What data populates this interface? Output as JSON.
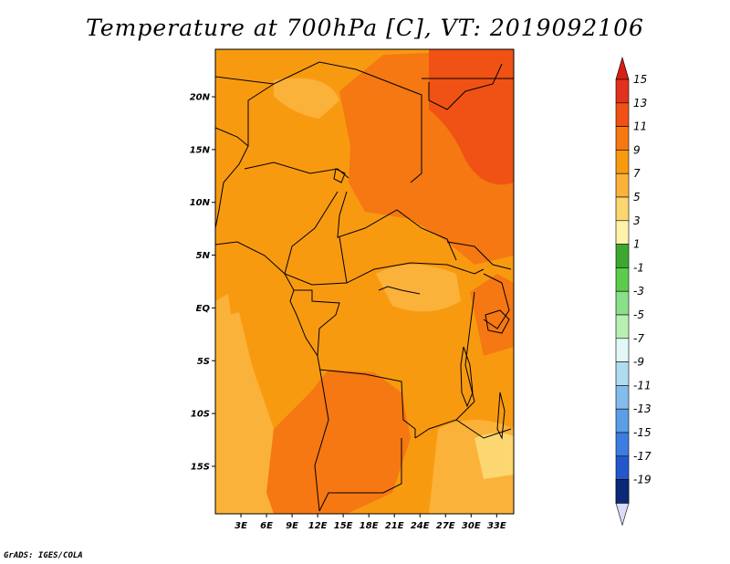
{
  "title": "Temperature at 700hPa [C], VT: 2019092106",
  "credit": "GrADS: IGES/COLA",
  "map": {
    "region": "Central Africa",
    "lat_range": [
      -19.5,
      24.5
    ],
    "lon_range": [
      0,
      35
    ],
    "lat_ticks": [
      {
        "label": "20N",
        "lat": 20
      },
      {
        "label": "15N",
        "lat": 15
      },
      {
        "label": "10N",
        "lat": 10
      },
      {
        "label": "5N",
        "lat": 5
      },
      {
        "label": "EQ",
        "lat": 0
      },
      {
        "label": "5S",
        "lat": -5
      },
      {
        "label": "10S",
        "lat": -10
      },
      {
        "label": "15S",
        "lat": -15
      }
    ],
    "lon_ticks": [
      {
        "label": "3E",
        "lon": 3
      },
      {
        "label": "6E",
        "lon": 6
      },
      {
        "label": "9E",
        "lon": 9
      },
      {
        "label": "12E",
        "lon": 12
      },
      {
        "label": "15E",
        "lon": 15
      },
      {
        "label": "18E",
        "lon": 18
      },
      {
        "label": "21E",
        "lon": 21
      },
      {
        "label": "24E",
        "lon": 24
      },
      {
        "label": "27E",
        "lon": 27
      },
      {
        "label": "30E",
        "lon": 30
      },
      {
        "label": "33E",
        "lon": 33
      }
    ]
  },
  "colorbar": {
    "levels": [
      {
        "label": "15",
        "color": "#e0321e"
      },
      {
        "label": "13",
        "color": "#ef5214"
      },
      {
        "label": "11",
        "color": "#f57812"
      },
      {
        "label": "9",
        "color": "#f89a10"
      },
      {
        "label": "7",
        "color": "#fbb23a"
      },
      {
        "label": "5",
        "color": "#fcd670"
      },
      {
        "label": "3",
        "color": "#fff2aa"
      },
      {
        "label": "1",
        "color": "#3ca832"
      },
      {
        "label": "-1",
        "color": "#5ccc4c"
      },
      {
        "label": "-3",
        "color": "#8ae088"
      },
      {
        "label": "-5",
        "color": "#b8f0b4"
      },
      {
        "label": "-7",
        "color": "#e2f8f8"
      },
      {
        "label": "-9",
        "color": "#b0dcf2"
      },
      {
        "label": "-11",
        "color": "#84bcec"
      },
      {
        "label": "-13",
        "color": "#5c9ee6"
      },
      {
        "label": "-15",
        "color": "#3c7ee0"
      },
      {
        "label": "-17",
        "color": "#2258cc"
      },
      {
        "label": "-19",
        "color": "#1438a4"
      }
    ],
    "top_color": "#d81e10",
    "bottom_color": "#d8dcf8",
    "bottom_band_color": "#0c2878"
  },
  "fields": {
    "base": "#f89a10",
    "warm_11": "#f57812",
    "warm_13": "#ef5214",
    "cool_7": "#fbb23a",
    "cool_5": "#fcd670"
  }
}
